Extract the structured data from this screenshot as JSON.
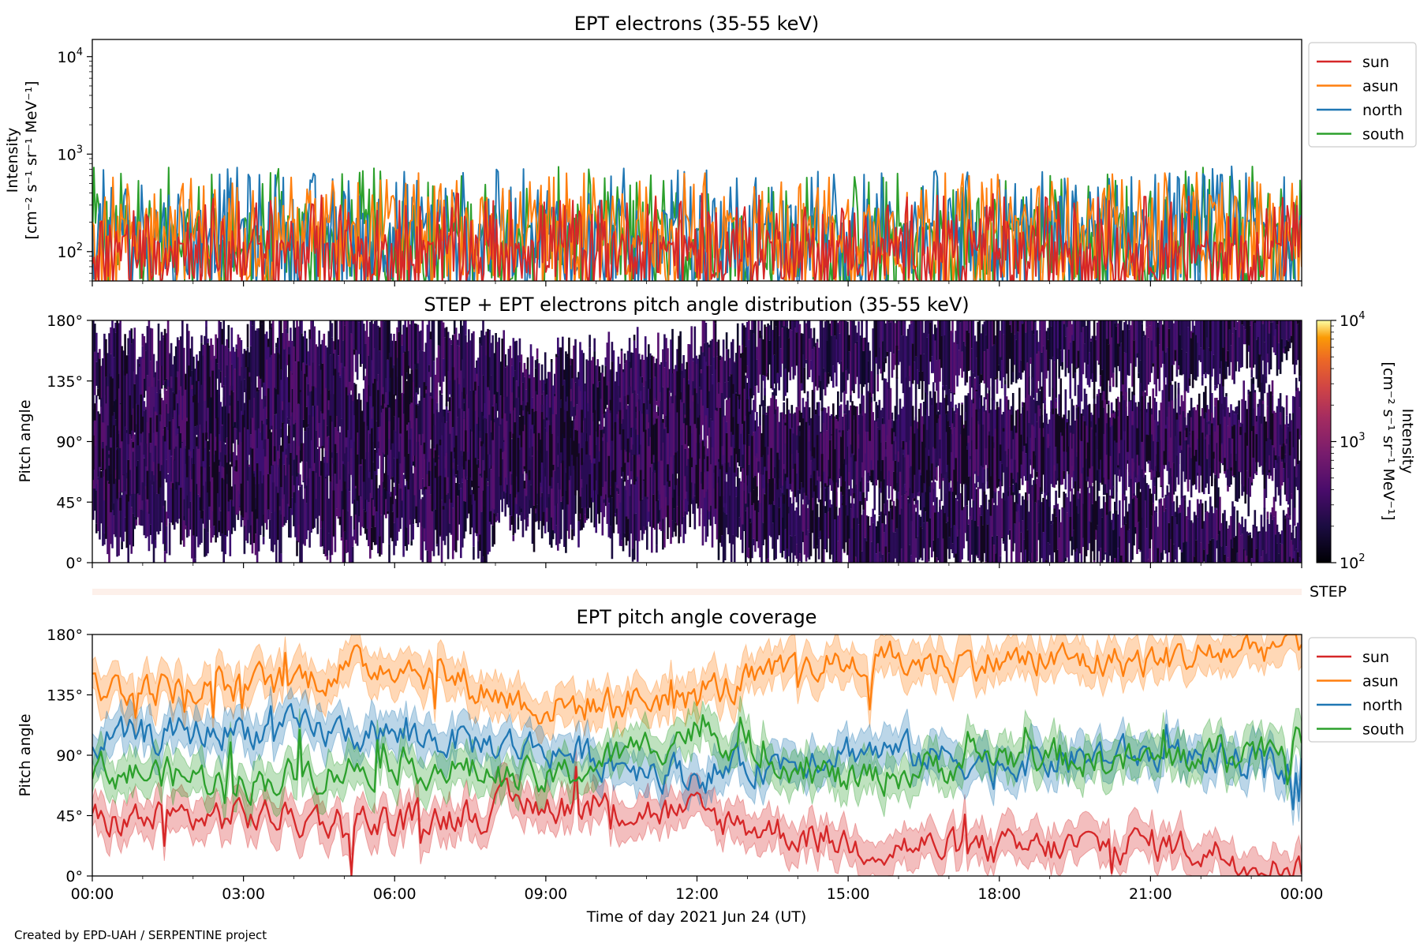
{
  "credit": "Created by EPD-UAH / SERPENTINE project",
  "xlabel": "Time of day 2021 Jun 24 (UT)",
  "time_ticks": [
    "00:00",
    "03:00",
    "06:00",
    "09:00",
    "12:00",
    "15:00",
    "18:00",
    "21:00",
    "00:00"
  ],
  "colors": {
    "sun": "#d62728",
    "asun": "#ff7f0e",
    "north": "#1f77b4",
    "south": "#2ca02c"
  },
  "chart_data": [
    {
      "type": "line",
      "title": "EPT electrons (35-55 keV)",
      "ylabel_line1": "Intensity",
      "ylabel_line2": "[cm⁻² s⁻¹ sr⁻¹ MeV⁻¹]",
      "yscale": "log",
      "ylim": [
        50,
        15000
      ],
      "xlim_hours": [
        0,
        24
      ],
      "y_ticks": [
        {
          "value": 100,
          "base": "10",
          "exp": "2"
        },
        {
          "value": 1000,
          "base": "10",
          "exp": "3"
        },
        {
          "value": 10000,
          "base": "10",
          "exp": "4"
        }
      ],
      "legend": {
        "placement": "outside-right",
        "entries": [
          "sun",
          "asun",
          "north",
          "south"
        ]
      },
      "series": [
        {
          "name": "sun",
          "typical": 120,
          "range": [
            50,
            400
          ]
        },
        {
          "name": "asun",
          "typical": 200,
          "range": [
            50,
            650
          ]
        },
        {
          "name": "north",
          "typical": 190,
          "range": [
            50,
            750
          ]
        },
        {
          "name": "south",
          "typical": 170,
          "range": [
            50,
            750
          ]
        }
      ]
    },
    {
      "type": "heatmap",
      "title": "STEP + EPT electrons pitch angle distribution (35-55 keV)",
      "ylabel": "Pitch angle",
      "ylim": [
        0,
        180
      ],
      "y_ticks": [
        "0°",
        "45°",
        "90°",
        "135°",
        "180°"
      ],
      "colorbar": {
        "scale": "log",
        "range": [
          100,
          10000
        ],
        "label_line1": "Intensity",
        "label_line2": "[cm⁻² s⁻¹ sr⁻¹ MeV⁻¹]",
        "ticks": [
          {
            "value": 100,
            "base": "10",
            "exp": "2"
          },
          {
            "value": 1000,
            "base": "10",
            "exp": "3"
          },
          {
            "value": 10000,
            "base": "10",
            "exp": "4"
          }
        ],
        "colormap": "inferno"
      }
    },
    {
      "type": "heatmap",
      "label": "STEP",
      "note": "thin empty STEP strip"
    },
    {
      "type": "line",
      "title": "EPT pitch angle coverage",
      "ylabel": "Pitch angle",
      "ylim": [
        0,
        180
      ],
      "y_ticks": [
        "0°",
        "45°",
        "90°",
        "135°",
        "180°"
      ],
      "legend": {
        "placement": "outside-right",
        "entries": [
          "sun",
          "asun",
          "north",
          "south"
        ]
      },
      "series": [
        {
          "name": "sun",
          "hours": [
            0,
            3,
            6,
            9,
            12,
            15,
            18,
            21,
            24
          ],
          "values": [
            40,
            45,
            40,
            55,
            45,
            25,
            18,
            25,
            8
          ]
        },
        {
          "name": "asun",
          "hours": [
            0,
            3,
            6,
            9,
            12,
            15,
            18,
            21,
            24
          ],
          "values": [
            140,
            140,
            160,
            125,
            135,
            160,
            160,
            160,
            175
          ]
        },
        {
          "name": "north",
          "hours": [
            0,
            3,
            6,
            9,
            12,
            15,
            18,
            21,
            24
          ],
          "values": [
            100,
            110,
            105,
            95,
            75,
            95,
            85,
            90,
            80
          ]
        },
        {
          "name": "south",
          "hours": [
            0,
            3,
            6,
            9,
            12,
            15,
            18,
            21,
            24
          ],
          "values": [
            80,
            70,
            85,
            70,
            110,
            70,
            90,
            85,
            100
          ]
        }
      ]
    }
  ]
}
